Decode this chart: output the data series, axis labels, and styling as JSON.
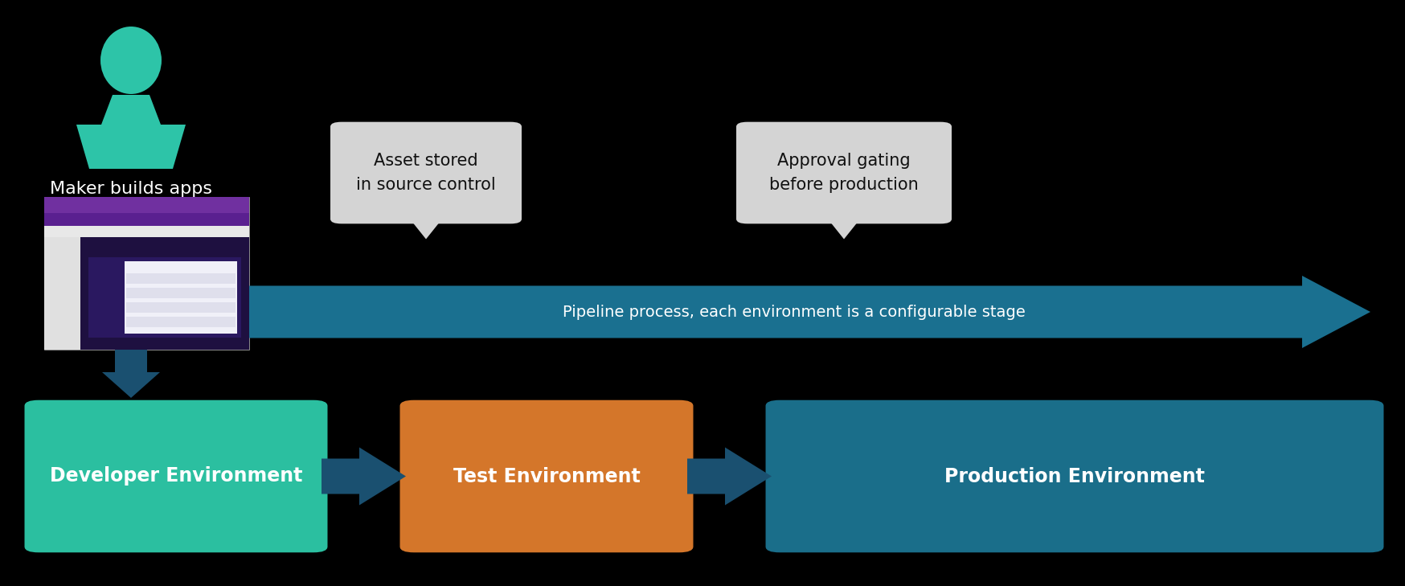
{
  "bg_color": "#000000",
  "text_color_white": "#ffffff",
  "text_color_dark": "#111111",
  "person_color": "#2dc4a8",
  "maker_label": "Maker builds apps",
  "asset_label": "Asset stored\nin source control",
  "approval_label": "Approval gating\nbefore production",
  "pipeline_label": "Pipeline process, each environment is a configurable stage",
  "dev_label": "Developer Environment",
  "test_label": "Test Environment",
  "prod_label": "Production Environment",
  "dev_color": "#2bbfa0",
  "test_color": "#d4762a",
  "prod_color": "#1a6e8a",
  "arrow_color": "#1a5070",
  "pipeline_color": "#1a7090",
  "callout_bg": "#d4d4d4",
  "fig_w": 17.49,
  "fig_h": 7.29,
  "dpi": 100
}
